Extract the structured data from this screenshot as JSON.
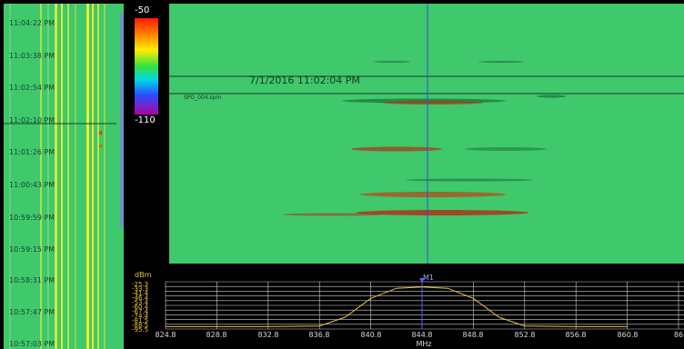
{
  "timeline": {
    "times": [
      "11:04:22 PM",
      "11:03:38 PM",
      "11:02:54 PM",
      "11:02:10 PM",
      "11:01:26 PM",
      "11:00:43 PM",
      "10:59:59 PM",
      "10:59:15 PM",
      "10:58:31 PM",
      "10:57:47 PM",
      "10:57:03 PM"
    ]
  },
  "legend": {
    "max": "-50",
    "min": "-110"
  },
  "spectrogram": {
    "timestamp": "7/1/2016 11:02:04 PM",
    "file": "SPG_004.spm"
  },
  "trace": {
    "unit": "dBm",
    "x_unit": "MHz",
    "marker": "M1",
    "x_ticks": [
      "824.8",
      "828.8",
      "832.8",
      "836.8",
      "840.8",
      "844.8",
      "848.8",
      "852.8",
      "856.8",
      "860.8",
      "86"
    ],
    "y_ticks": [
      "-25.3",
      "-33.3",
      "-41.4",
      "-46.4",
      "-53.4",
      "-60.4",
      "-67.4",
      "-74.4",
      "-81.5",
      "-88.5",
      "-95.5"
    ],
    "colors": {
      "trace": "#e8c23a",
      "marker": "#5060ff",
      "grid": "#cfcfcf"
    }
  },
  "chart_data": {
    "type": "line",
    "xlabel": "MHz",
    "ylabel": "dBm",
    "x": [
      824.8,
      828.8,
      832.8,
      836.8,
      838.8,
      840.8,
      842.8,
      844.8,
      846.8,
      848.8,
      850.8,
      852.8,
      856.8,
      860.8
    ],
    "series": [
      {
        "values": [
          -92,
          -92,
          -92,
          -91,
          -78,
          -50,
          -35,
          -33,
          -35,
          -50,
          -78,
          -91,
          -92,
          -92
        ]
      }
    ],
    "ylim": [
      -95.5,
      -25.3
    ],
    "grid": true
  }
}
